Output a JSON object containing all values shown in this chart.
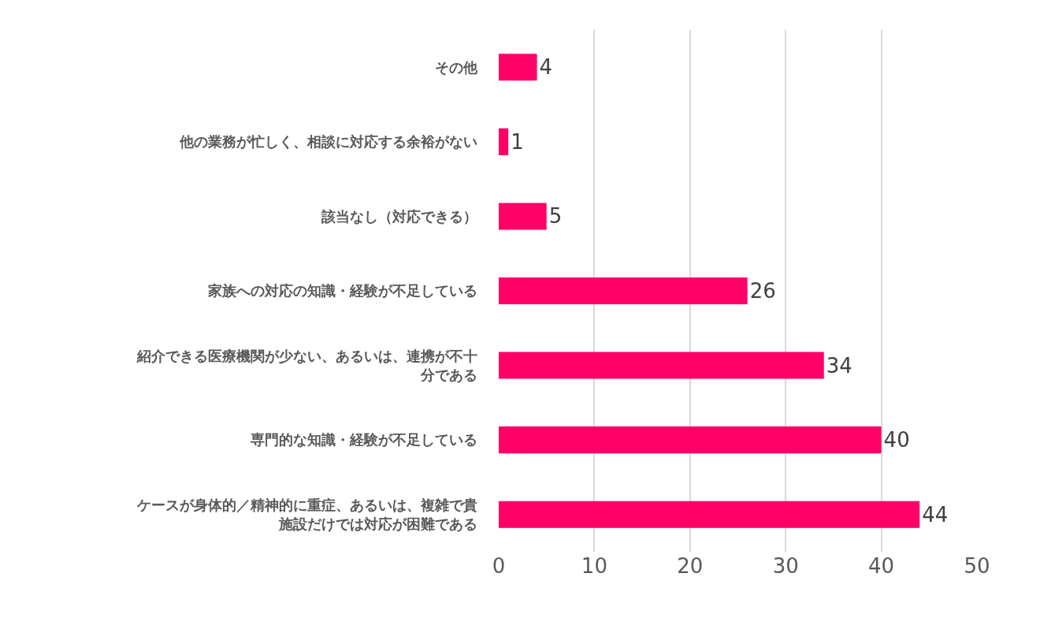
{
  "chart_data": {
    "type": "bar",
    "orientation": "horizontal",
    "categories": [
      "その他",
      "他の業務が忙しく、相談に対応する余裕がない",
      "該当なし（対応できる）",
      "家族への対応の知識・経験が不足している",
      "紹介できる医療機関が少ない、あるいは、連携が不十分である",
      "専門的な知識・経験が不足している",
      "ケースが身体的／精神的に重症、あるいは、複雑で貴施設だけでは対応が困難である"
    ],
    "values": [
      4,
      1,
      5,
      26,
      34,
      40,
      44
    ],
    "color": "#ff0066",
    "xlim": [
      0,
      50
    ],
    "xticks": [
      0,
      10,
      20,
      30,
      40,
      50
    ],
    "grid": "x",
    "data_labels": true,
    "legend": false
  }
}
